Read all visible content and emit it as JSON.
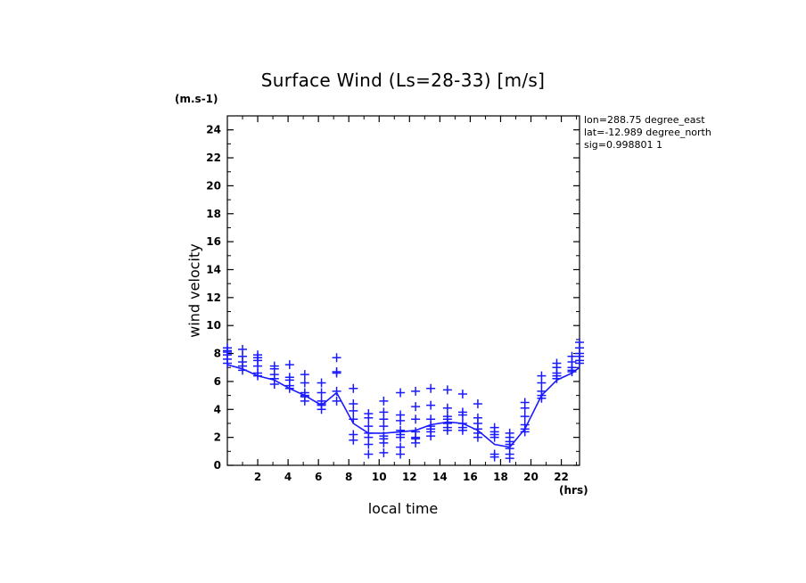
{
  "chart_data": {
    "type": "scatter",
    "title": "Surface Wind  (Ls=28-33) [m/s]",
    "xlabel": "local time",
    "ylabel": "wind velocity",
    "x_unit": "(hrs)",
    "y_unit": "(m.s-1)",
    "xlim": [
      0,
      23.2
    ],
    "ylim": [
      0,
      25
    ],
    "x_ticks": [
      2,
      4,
      6,
      8,
      10,
      12,
      14,
      16,
      18,
      20,
      22
    ],
    "y_ticks": [
      0,
      2,
      4,
      6,
      8,
      10,
      12,
      14,
      16,
      18,
      20,
      22,
      24
    ],
    "info_lines": [
      "lon=288.75 degree_east",
      "lat=-12.989 degree_north",
      "sig=0.998801 1"
    ],
    "grid": false,
    "color": "#1a1aff",
    "series": [
      {
        "type": "line",
        "x": [
          0.0,
          1.0,
          2.0,
          3.1,
          4.1,
          5.1,
          6.2,
          7.2,
          8.3,
          9.3,
          10.3,
          11.4,
          12.4,
          13.4,
          14.5,
          15.5,
          16.5,
          17.6,
          18.6,
          19.6,
          20.7,
          21.7,
          22.7,
          23.2
        ],
        "y": [
          7.2,
          6.9,
          6.4,
          6.1,
          5.5,
          5.0,
          4.3,
          5.2,
          3.0,
          2.3,
          2.3,
          2.4,
          2.5,
          2.9,
          3.1,
          3.0,
          2.5,
          1.5,
          1.3,
          2.6,
          5.0,
          6.1,
          6.6,
          7.0
        ]
      },
      {
        "type": "scatter",
        "x": [
          0.0,
          0.0,
          0.0,
          0.0,
          0.0,
          0.0,
          1.0,
          1.0,
          1.0,
          1.0,
          1.0,
          2.0,
          2.0,
          2.0,
          2.0,
          2.0,
          2.0,
          3.1,
          3.1,
          3.1,
          3.1,
          3.1,
          4.1,
          4.1,
          4.1,
          4.1,
          4.1,
          5.1,
          5.1,
          5.1,
          5.1,
          5.1,
          5.1,
          6.2,
          6.2,
          6.2,
          6.2,
          6.2,
          6.2,
          7.2,
          7.2,
          7.2,
          7.2,
          7.2,
          8.3,
          8.3,
          8.3,
          8.3,
          8.3,
          8.3,
          9.3,
          9.3,
          9.3,
          9.3,
          9.3,
          9.3,
          9.3,
          10.3,
          10.3,
          10.3,
          10.3,
          10.3,
          10.3,
          10.3,
          10.3,
          11.4,
          11.4,
          11.4,
          11.4,
          11.4,
          11.4,
          11.4,
          11.4,
          12.4,
          12.4,
          12.4,
          12.4,
          12.4,
          12.4,
          12.4,
          13.4,
          13.4,
          13.4,
          13.4,
          13.4,
          13.4,
          13.4,
          14.5,
          14.5,
          14.5,
          14.5,
          14.5,
          14.5,
          14.5,
          15.5,
          15.5,
          15.5,
          15.5,
          15.5,
          15.5,
          16.5,
          16.5,
          16.5,
          16.5,
          16.5,
          16.5,
          17.6,
          17.6,
          17.6,
          17.6,
          17.6,
          17.6,
          18.6,
          18.6,
          18.6,
          18.6,
          18.6,
          18.6,
          18.6,
          19.6,
          19.6,
          19.6,
          19.6,
          19.6,
          19.6,
          20.7,
          20.7,
          20.7,
          20.7,
          20.7,
          21.7,
          21.7,
          21.7,
          21.7,
          21.7,
          22.7,
          22.7,
          22.7,
          22.7,
          22.7,
          23.2,
          23.2,
          23.2,
          23.2,
          23.2,
          23.2
        ],
        "y": [
          8.4,
          8.2,
          8.1,
          7.9,
          7.6,
          7.3,
          8.3,
          7.8,
          7.4,
          7.1,
          6.8,
          7.9,
          7.7,
          7.5,
          7.1,
          6.6,
          6.4,
          7.1,
          6.9,
          6.5,
          6.2,
          5.8,
          7.2,
          6.3,
          6.1,
          5.7,
          5.5,
          6.5,
          5.9,
          5.2,
          5.0,
          4.9,
          4.6,
          5.9,
          5.2,
          4.6,
          4.4,
          4.3,
          4.0,
          7.7,
          6.7,
          6.6,
          5.3,
          4.6,
          5.5,
          4.4,
          3.9,
          3.3,
          2.2,
          1.8,
          3.7,
          3.4,
          2.8,
          2.3,
          2.0,
          1.5,
          0.8,
          4.6,
          3.8,
          3.3,
          2.8,
          2.1,
          1.9,
          1.6,
          0.9,
          5.2,
          3.6,
          3.2,
          2.5,
          2.2,
          2.0,
          1.3,
          0.8,
          5.3,
          4.2,
          3.3,
          2.4,
          2.0,
          1.9,
          1.6,
          5.5,
          4.3,
          3.3,
          2.8,
          2.6,
          2.4,
          2.1,
          5.4,
          4.1,
          3.5,
          3.3,
          3.0,
          2.7,
          2.5,
          5.1,
          3.8,
          3.6,
          3.0,
          2.7,
          2.5,
          4.4,
          3.4,
          3.0,
          2.6,
          2.3,
          2.0,
          2.7,
          2.4,
          2.2,
          2.0,
          0.8,
          0.6,
          2.3,
          2.0,
          1.7,
          1.5,
          1.2,
          0.8,
          0.5,
          4.5,
          4.1,
          3.5,
          2.9,
          2.6,
          2.4,
          6.4,
          5.9,
          5.3,
          5.0,
          4.8,
          7.3,
          7.0,
          6.6,
          6.4,
          6.2,
          7.8,
          7.4,
          7.0,
          6.8,
          6.7,
          8.8,
          8.4,
          8.0,
          7.8,
          7.5,
          7.3
        ]
      }
    ]
  }
}
